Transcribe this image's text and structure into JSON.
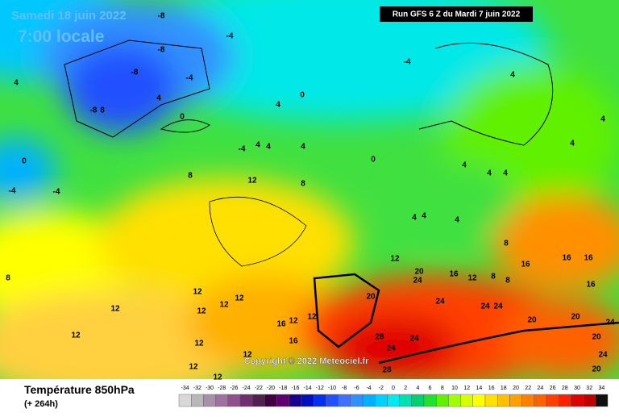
{
  "header": {
    "date": "Samedi 18 juin 2022",
    "time": "7:00 locale",
    "run": "Run GFS 6 Z du Mardi 7 juin 2022"
  },
  "footer": {
    "title": "Température 850hPa",
    "lead": "(+ 264h)",
    "copyright": "Copyright © 2022 Meteociel.fr"
  },
  "legend": {
    "labels": [
      -34,
      -32,
      -30,
      -28,
      -26,
      -24,
      -22,
      -20,
      -18,
      -16,
      -14,
      -12,
      -10,
      -8,
      -6,
      -4,
      -2,
      0,
      2,
      4,
      6,
      8,
      10,
      12,
      14,
      16,
      18,
      20,
      22,
      24,
      26,
      28,
      30,
      32,
      34
    ],
    "colors": [
      "#d8d8d8",
      "#b8b8b8",
      "#a890a8",
      "#a070a0",
      "#905090",
      "#703070",
      "#502050",
      "#400040",
      "#600070",
      "#1a0090",
      "#0010c0",
      "#0030f0",
      "#2050ff",
      "#4070ff",
      "#3090ff",
      "#00b0ff",
      "#00d0ff",
      "#00e8f0",
      "#00e0b0",
      "#00d070",
      "#20e030",
      "#60f000",
      "#a0ff00",
      "#d8ff00",
      "#ffff00",
      "#ffe000",
      "#ffc000",
      "#ffa000",
      "#ff8000",
      "#ff6000",
      "#ff4000",
      "#ff2000",
      "#e00000",
      "#c00000",
      "#101010"
    ]
  },
  "map": {
    "contour_labels": [
      "-8",
      "-4",
      "-8",
      "-8",
      "-4",
      "4",
      "-8",
      "8",
      "4",
      "0",
      "0",
      "-4",
      "4",
      "4",
      "4",
      "4",
      "4",
      "4",
      "4",
      "4",
      "4",
      "4",
      "0",
      "4",
      "4",
      "4",
      "-4",
      "8",
      "12",
      "8",
      "-4",
      "-4",
      "0",
      "8",
      "12",
      "16",
      "16",
      "16",
      "20",
      "24",
      "16",
      "12",
      "8",
      "8",
      "16",
      "20",
      "24",
      "24",
      "24",
      "20",
      "20",
      "24",
      "20",
      "28",
      "24",
      "24",
      "24",
      "28",
      "20",
      "12",
      "12",
      "12",
      "12",
      "12",
      "12",
      "16",
      "12",
      "12",
      "16",
      "12",
      "12",
      "12",
      "12",
      "8"
    ]
  }
}
